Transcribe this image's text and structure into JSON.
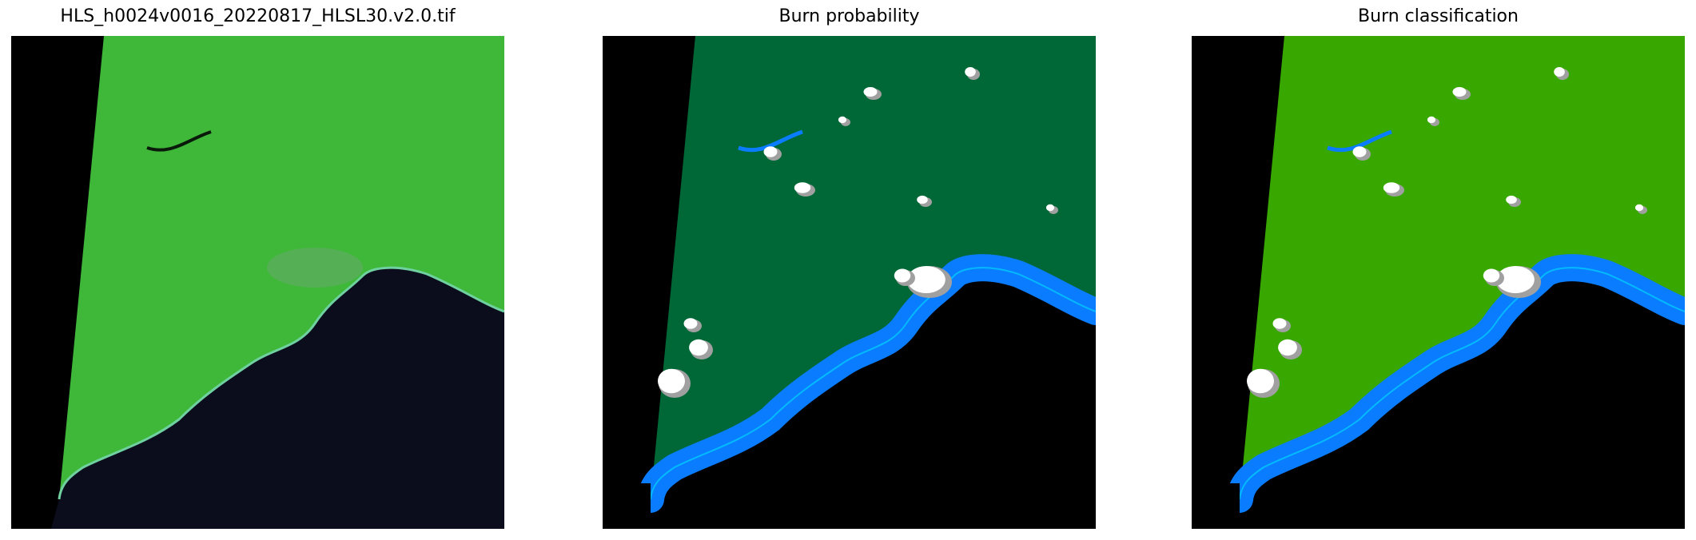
{
  "panels": [
    {
      "title": "HLS_h0024v0016_20220817_HLSL30.v2.0.tif",
      "kind": "rgb-satellite"
    },
    {
      "title": "Burn probability",
      "kind": "probability-map"
    },
    {
      "title": "Burn classification",
      "kind": "classification-map"
    }
  ],
  "colors": {
    "nodata": "#000000",
    "rgb_land": "#3fb83a",
    "rgb_ocean": "#0b0d1c",
    "probability_land": "#006837",
    "classification_land": "#38a800",
    "water": "#0a7cff",
    "cloud": "#ffffff",
    "cloud_shadow": "#a0a0a0",
    "edge_cyan": "#00e5ff"
  }
}
